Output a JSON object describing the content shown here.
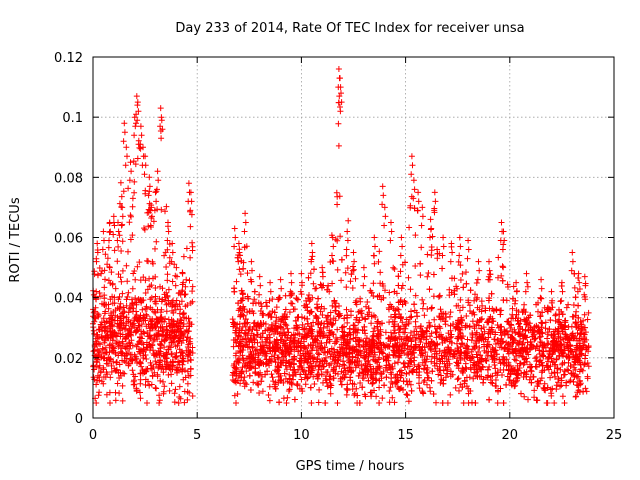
{
  "chart_data": {
    "type": "scatter",
    "title": "Day 233 of 2014, Rate Of TEC Index for receiver unsa",
    "xlabel": "GPS time / hours",
    "ylabel": "ROTI / TECUs",
    "xlim": [
      0,
      25
    ],
    "ylim": [
      0,
      0.12
    ],
    "xticks": [
      "0",
      "5",
      "10",
      "15",
      "20",
      "25"
    ],
    "yticks": [
      "0",
      "0.02",
      "0.04",
      "0.06",
      "0.08",
      "0.1",
      "0.12"
    ],
    "grid": true,
    "marker": "plus",
    "color": "#ff0000",
    "legend": "none",
    "series": [
      {
        "segments": [
          {
            "x_start": 0.0,
            "x_end": 4.8,
            "y_min": 0.005,
            "y_typical": 0.025,
            "y_spread": 0.018
          },
          {
            "x_start": 6.7,
            "x_end": 23.8,
            "y_min": 0.005,
            "y_typical": 0.022,
            "y_spread": 0.015
          }
        ],
        "peaks": [
          {
            "x": 0.2,
            "y": 0.058
          },
          {
            "x": 0.5,
            "y": 0.062
          },
          {
            "x": 0.8,
            "y": 0.065
          },
          {
            "x": 1.0,
            "y": 0.067
          },
          {
            "x": 1.2,
            "y": 0.065
          },
          {
            "x": 1.4,
            "y": 0.07
          },
          {
            "x": 1.5,
            "y": 0.098
          },
          {
            "x": 1.6,
            "y": 0.09
          },
          {
            "x": 1.8,
            "y": 0.085
          },
          {
            "x": 2.0,
            "y": 0.1
          },
          {
            "x": 2.1,
            "y": 0.107
          },
          {
            "x": 2.15,
            "y": 0.105
          },
          {
            "x": 2.3,
            "y": 0.097
          },
          {
            "x": 2.4,
            "y": 0.09
          },
          {
            "x": 2.5,
            "y": 0.087
          },
          {
            "x": 2.7,
            "y": 0.08
          },
          {
            "x": 2.8,
            "y": 0.07
          },
          {
            "x": 3.0,
            "y": 0.075
          },
          {
            "x": 3.1,
            "y": 0.082
          },
          {
            "x": 3.25,
            "y": 0.103
          },
          {
            "x": 3.3,
            "y": 0.099
          },
          {
            "x": 3.6,
            "y": 0.065
          },
          {
            "x": 3.8,
            "y": 0.058
          },
          {
            "x": 4.0,
            "y": 0.05
          },
          {
            "x": 4.3,
            "y": 0.048
          },
          {
            "x": 4.6,
            "y": 0.078
          },
          {
            "x": 4.7,
            "y": 0.075
          },
          {
            "x": 6.8,
            "y": 0.063
          },
          {
            "x": 7.0,
            "y": 0.058
          },
          {
            "x": 7.3,
            "y": 0.068
          },
          {
            "x": 7.6,
            "y": 0.052
          },
          {
            "x": 8.0,
            "y": 0.047
          },
          {
            "x": 8.5,
            "y": 0.045
          },
          {
            "x": 9.0,
            "y": 0.046
          },
          {
            "x": 9.5,
            "y": 0.048
          },
          {
            "x": 10.0,
            "y": 0.048
          },
          {
            "x": 10.5,
            "y": 0.058
          },
          {
            "x": 11.0,
            "y": 0.05
          },
          {
            "x": 11.5,
            "y": 0.06
          },
          {
            "x": 11.8,
            "y": 0.116
          },
          {
            "x": 11.85,
            "y": 0.113
          },
          {
            "x": 11.9,
            "y": 0.108
          },
          {
            "x": 12.2,
            "y": 0.062
          },
          {
            "x": 12.5,
            "y": 0.055
          },
          {
            "x": 13.0,
            "y": 0.05
          },
          {
            "x": 13.5,
            "y": 0.06
          },
          {
            "x": 13.9,
            "y": 0.077
          },
          {
            "x": 14.0,
            "y": 0.07
          },
          {
            "x": 14.3,
            "y": 0.065
          },
          {
            "x": 14.8,
            "y": 0.06
          },
          {
            "x": 15.3,
            "y": 0.087
          },
          {
            "x": 15.4,
            "y": 0.079
          },
          {
            "x": 15.6,
            "y": 0.075
          },
          {
            "x": 15.8,
            "y": 0.07
          },
          {
            "x": 16.2,
            "y": 0.066
          },
          {
            "x": 16.4,
            "y": 0.075
          },
          {
            "x": 16.8,
            "y": 0.06
          },
          {
            "x": 17.2,
            "y": 0.058
          },
          {
            "x": 17.6,
            "y": 0.06
          },
          {
            "x": 18.0,
            "y": 0.059
          },
          {
            "x": 18.5,
            "y": 0.052
          },
          {
            "x": 19.0,
            "y": 0.052
          },
          {
            "x": 19.6,
            "y": 0.065
          },
          {
            "x": 19.7,
            "y": 0.062
          },
          {
            "x": 20.3,
            "y": 0.045
          },
          {
            "x": 20.8,
            "y": 0.048
          },
          {
            "x": 21.5,
            "y": 0.046
          },
          {
            "x": 22.0,
            "y": 0.042
          },
          {
            "x": 22.5,
            "y": 0.045
          },
          {
            "x": 23.0,
            "y": 0.055
          },
          {
            "x": 23.3,
            "y": 0.048
          },
          {
            "x": 23.6,
            "y": 0.047
          }
        ]
      }
    ]
  }
}
